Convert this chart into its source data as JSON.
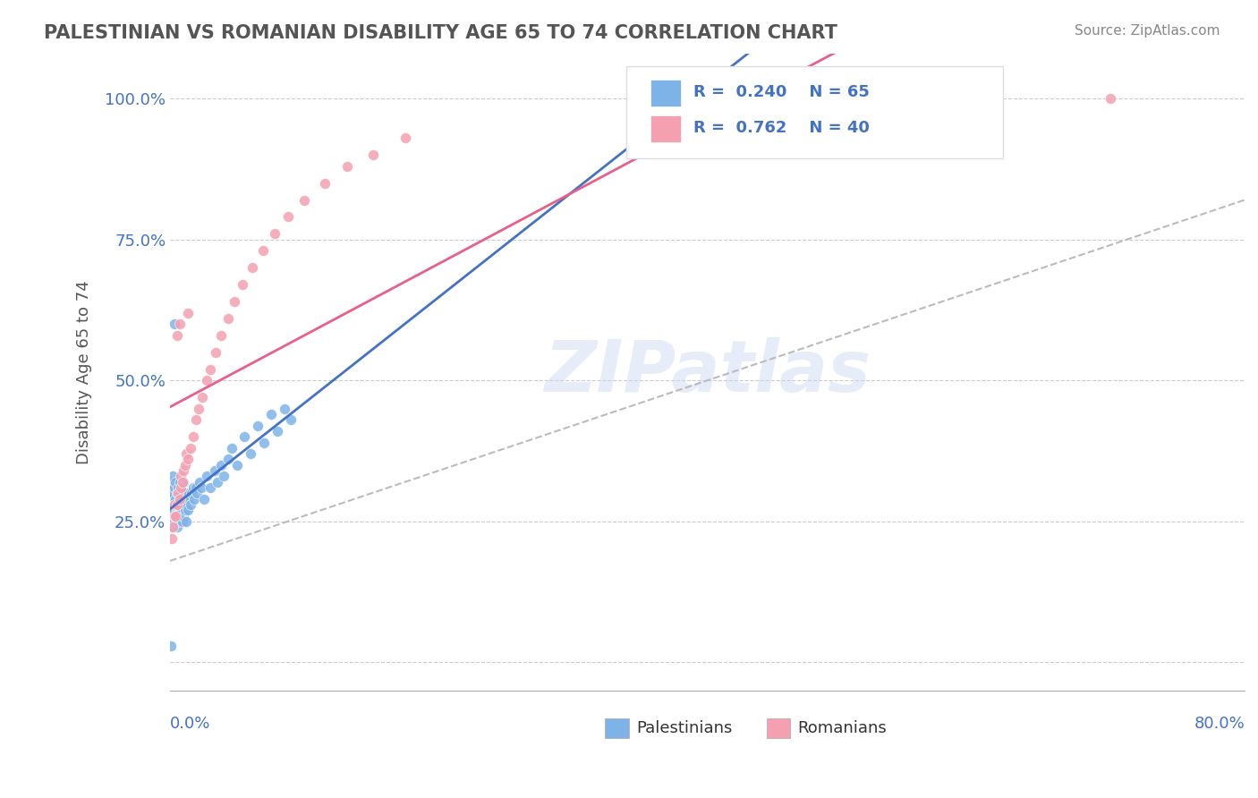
{
  "title": "PALESTINIAN VS ROMANIAN DISABILITY AGE 65 TO 74 CORRELATION CHART",
  "source": "Source: ZipAtlas.com",
  "ylabel": "Disability Age 65 to 74",
  "legend_label1": "Palestinians",
  "legend_label2": "Romanians",
  "R1": 0.24,
  "N1": 65,
  "R2": 0.762,
  "N2": 40,
  "blue_color": "#7EB3E8",
  "pink_color": "#F4A0B0",
  "blue_line_color": "#4472C4",
  "pink_line_color": "#E8608A",
  "axis_label_color": "#4472C4",
  "xlim": [
    0.0,
    0.8
  ],
  "ylim": [
    -0.05,
    1.08
  ],
  "pal_x": [
    0.0005,
    0.0008,
    0.001,
    0.001,
    0.001,
    0.002,
    0.002,
    0.002,
    0.002,
    0.003,
    0.003,
    0.003,
    0.004,
    0.004,
    0.004,
    0.005,
    0.005,
    0.005,
    0.006,
    0.006,
    0.006,
    0.007,
    0.007,
    0.007,
    0.008,
    0.008,
    0.009,
    0.009,
    0.01,
    0.01,
    0.01,
    0.011,
    0.011,
    0.012,
    0.012,
    0.013,
    0.014,
    0.015,
    0.016,
    0.017,
    0.018,
    0.019,
    0.02,
    0.022,
    0.023,
    0.025,
    0.027,
    0.03,
    0.033,
    0.035,
    0.038,
    0.04,
    0.043,
    0.046,
    0.05,
    0.055,
    0.06,
    0.065,
    0.07,
    0.075,
    0.08,
    0.085,
    0.09,
    0.003,
    0.0003
  ],
  "pal_y": [
    0.28,
    0.3,
    0.26,
    0.29,
    0.32,
    0.24,
    0.27,
    0.3,
    0.33,
    0.25,
    0.28,
    0.31,
    0.26,
    0.29,
    0.32,
    0.24,
    0.27,
    0.3,
    0.25,
    0.28,
    0.31,
    0.26,
    0.29,
    0.32,
    0.27,
    0.3,
    0.25,
    0.28,
    0.26,
    0.29,
    0.32,
    0.27,
    0.3,
    0.25,
    0.28,
    0.27,
    0.29,
    0.28,
    0.3,
    0.31,
    0.29,
    0.31,
    0.3,
    0.32,
    0.31,
    0.29,
    0.33,
    0.31,
    0.34,
    0.32,
    0.35,
    0.33,
    0.36,
    0.38,
    0.35,
    0.4,
    0.37,
    0.42,
    0.39,
    0.44,
    0.41,
    0.45,
    0.43,
    0.6,
    0.03
  ],
  "rom_x": [
    0.001,
    0.002,
    0.003,
    0.003,
    0.004,
    0.005,
    0.006,
    0.007,
    0.008,
    0.008,
    0.009,
    0.01,
    0.011,
    0.012,
    0.013,
    0.015,
    0.017,
    0.019,
    0.021,
    0.024,
    0.027,
    0.03,
    0.034,
    0.038,
    0.043,
    0.048,
    0.054,
    0.061,
    0.069,
    0.078,
    0.088,
    0.1,
    0.115,
    0.132,
    0.151,
    0.175,
    0.005,
    0.007,
    0.013,
    0.7
  ],
  "rom_y": [
    0.22,
    0.24,
    0.26,
    0.28,
    0.26,
    0.28,
    0.3,
    0.29,
    0.31,
    0.33,
    0.32,
    0.34,
    0.35,
    0.37,
    0.36,
    0.38,
    0.4,
    0.43,
    0.45,
    0.47,
    0.5,
    0.52,
    0.55,
    0.58,
    0.61,
    0.64,
    0.67,
    0.7,
    0.73,
    0.76,
    0.79,
    0.82,
    0.85,
    0.88,
    0.9,
    0.93,
    0.58,
    0.6,
    0.62,
    1.0
  ]
}
